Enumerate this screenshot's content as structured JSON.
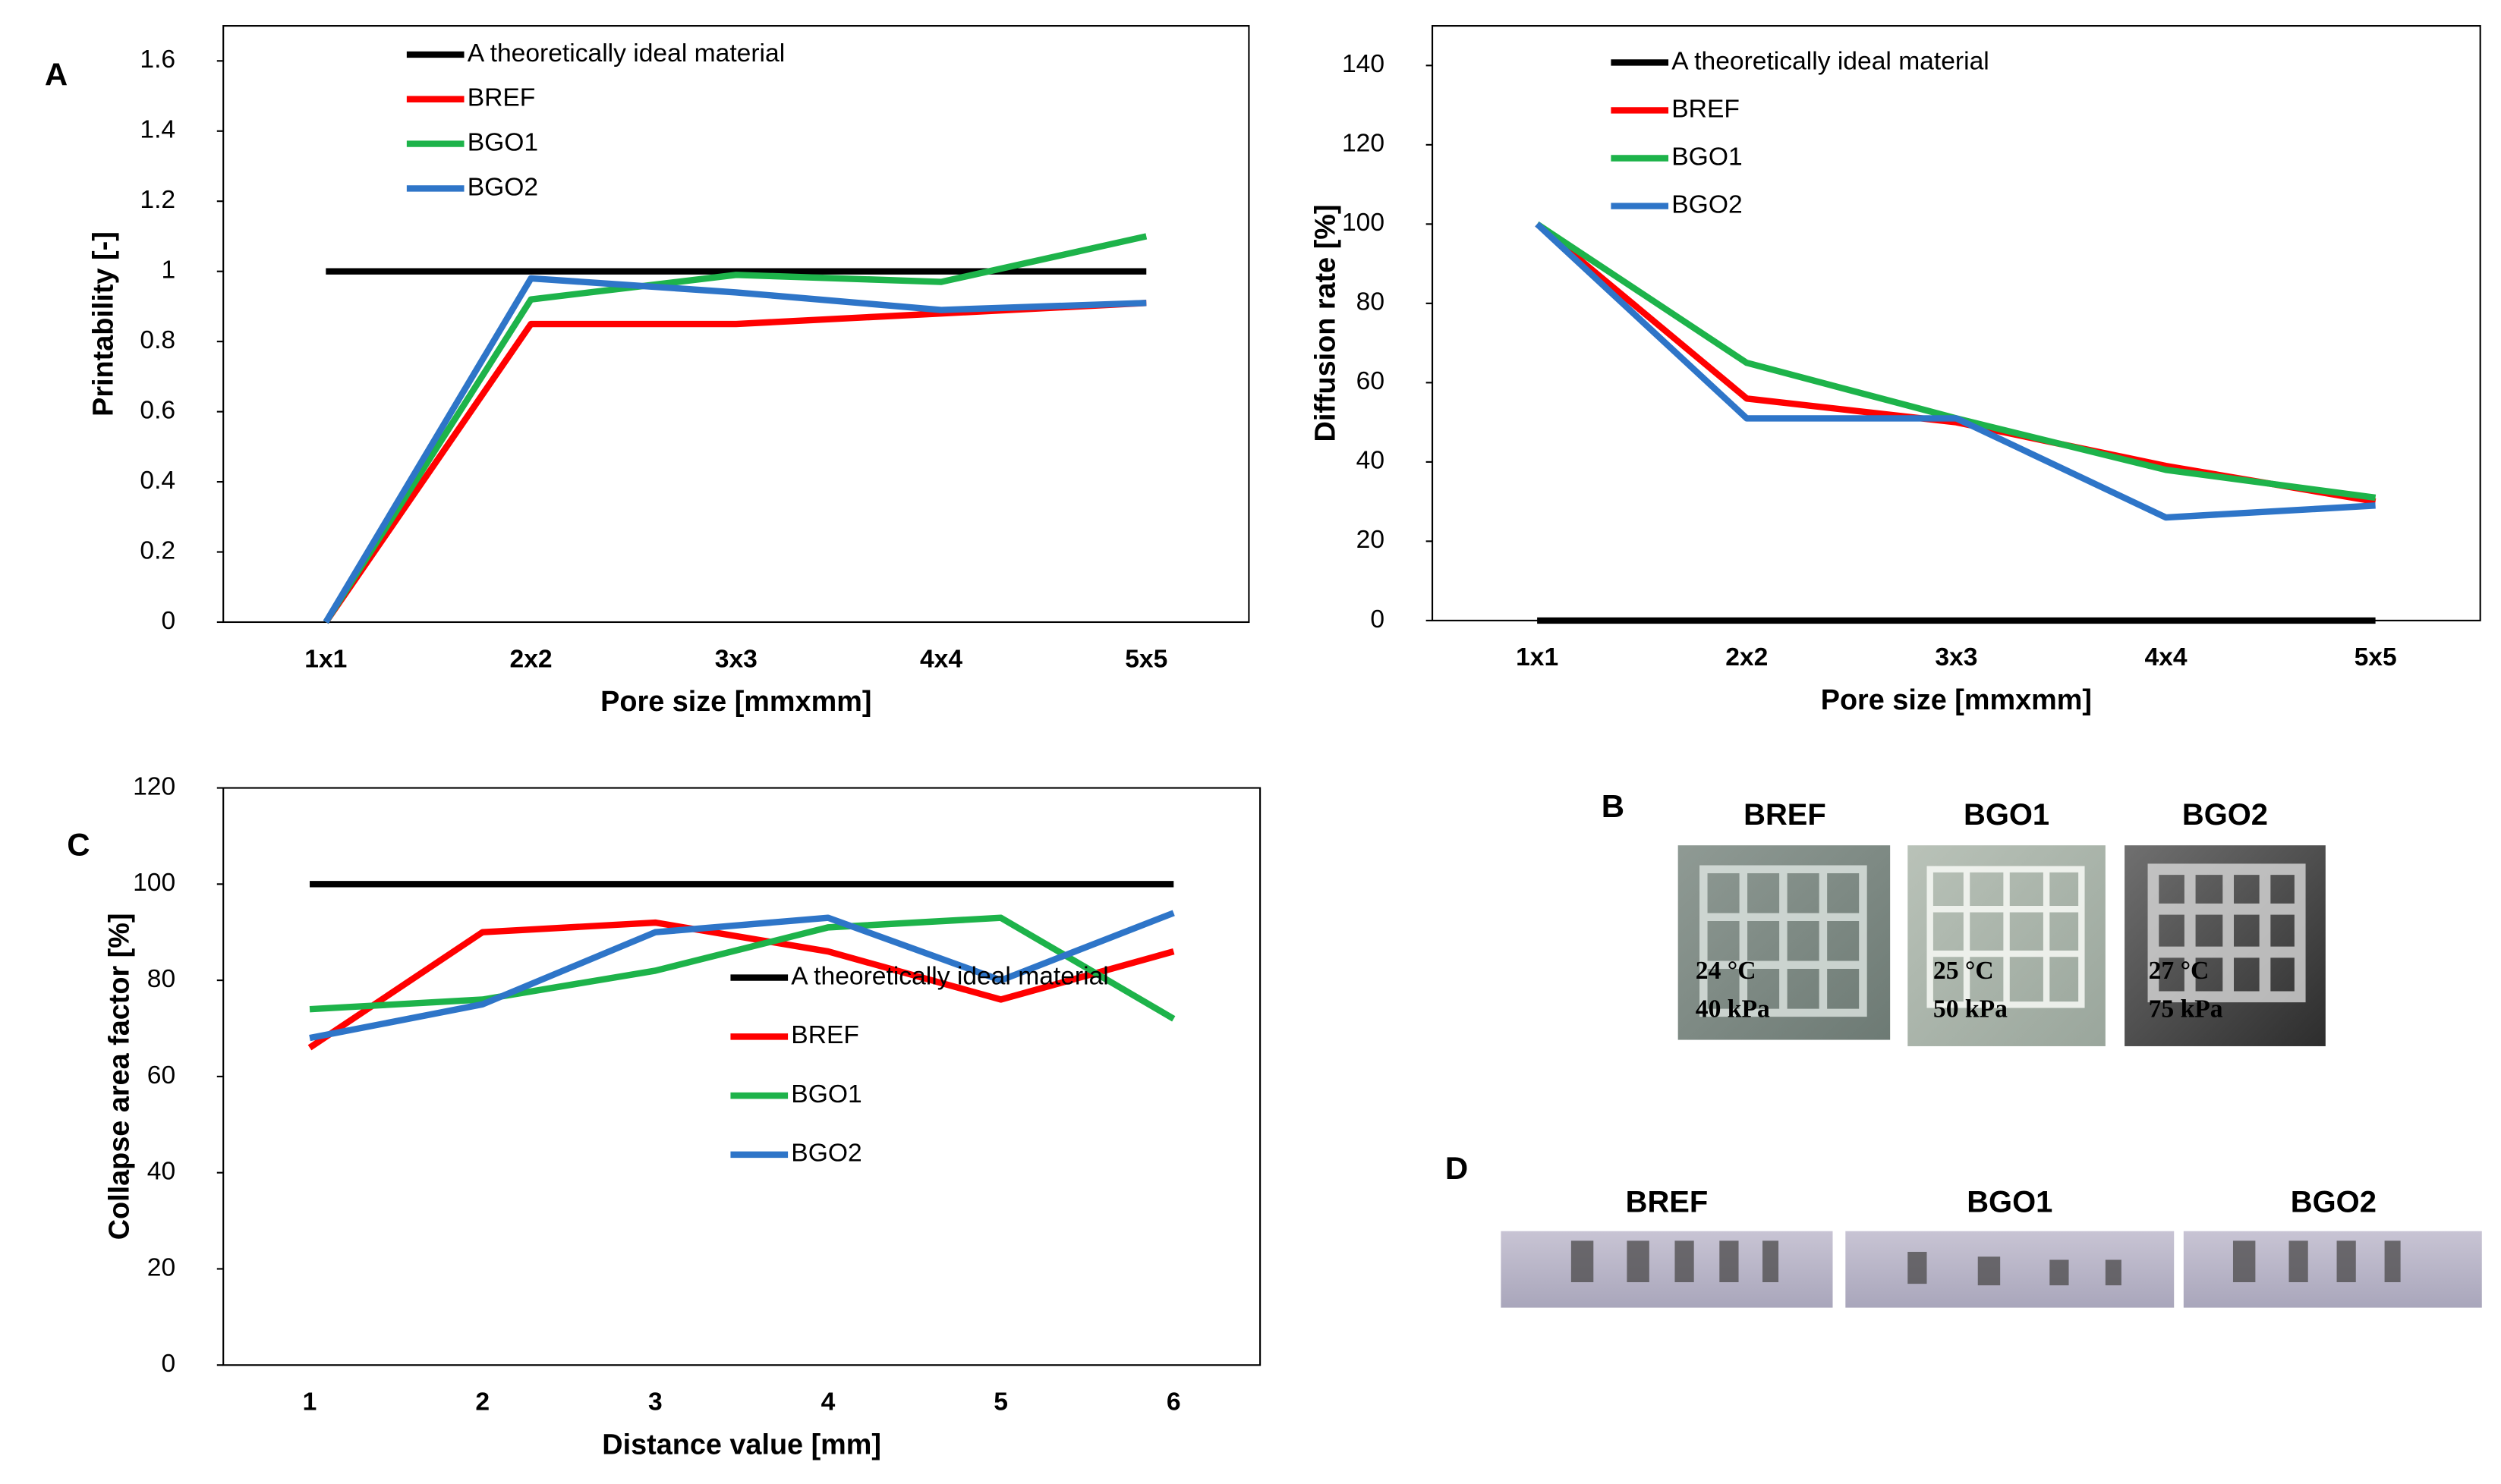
{
  "chart_data": [
    {
      "type": "line",
      "panel": "A",
      "x_label": "Pore size [mmxmm]",
      "y_label": "Printability [-]",
      "categories": [
        "1x1",
        "2x2",
        "3x3",
        "4x4",
        "5x5"
      ],
      "ylim": [
        0,
        1.7
      ],
      "yticks": [
        0,
        0.2,
        0.4,
        0.6,
        0.8,
        1,
        1.2,
        1.4,
        1.6
      ],
      "legend": "upper left",
      "series": [
        {
          "name": "A theoretically ideal material",
          "color": "#000000",
          "values": [
            1,
            1,
            1,
            1,
            1
          ]
        },
        {
          "name": "BREF",
          "color": "#ff0000",
          "values": [
            0,
            0.85,
            0.85,
            0.88,
            0.91
          ]
        },
        {
          "name": "BGO1",
          "color": "#1db34a",
          "values": [
            0,
            0.92,
            0.99,
            0.97,
            1.1
          ]
        },
        {
          "name": "BGO2",
          "color": "#2e75c8",
          "values": [
            0,
            0.98,
            0.94,
            0.89,
            0.91
          ]
        }
      ]
    },
    {
      "type": "line",
      "x_label": "Pore size [mmxmm]",
      "y_label": "Diffusion rate [%]",
      "categories": [
        "1x1",
        "2x2",
        "3x3",
        "4x4",
        "5x5"
      ],
      "ylim": [
        0,
        150
      ],
      "yticks": [
        0,
        20,
        40,
        60,
        80,
        100,
        120,
        140
      ],
      "legend": "upper left",
      "series": [
        {
          "name": "A theoretically ideal material",
          "color": "#000000",
          "values": [
            0,
            0,
            0,
            0,
            0
          ]
        },
        {
          "name": "BREF",
          "color": "#ff0000",
          "values": [
            100,
            56,
            50,
            39,
            30
          ]
        },
        {
          "name": "BGO1",
          "color": "#1db34a",
          "values": [
            100,
            65,
            51,
            38,
            31
          ]
        },
        {
          "name": "BGO2",
          "color": "#2e75c8",
          "values": [
            100,
            51,
            51,
            26,
            29
          ]
        }
      ]
    },
    {
      "type": "line",
      "panel": "C",
      "x_label": "Distance value [mm]",
      "y_label": "Collapse area factor [%]",
      "categories": [
        "1",
        "2",
        "3",
        "4",
        "5",
        "6"
      ],
      "ylim": [
        0,
        120
      ],
      "yticks": [
        0,
        20,
        40,
        60,
        80,
        100,
        120
      ],
      "legend": "lower right",
      "series": [
        {
          "name": "A theoretically ideal material",
          "color": "#000000",
          "values": [
            100,
            100,
            100,
            100,
            100,
            100
          ]
        },
        {
          "name": "BREF",
          "color": "#ff0000",
          "values": [
            66,
            90,
            92,
            86,
            76,
            86
          ]
        },
        {
          "name": "BGO1",
          "color": "#1db34a",
          "values": [
            74,
            76,
            82,
            91,
            93,
            72
          ]
        },
        {
          "name": "BGO2",
          "color": "#2e75c8",
          "values": [
            68,
            75,
            90,
            93,
            80,
            94
          ]
        }
      ]
    }
  ],
  "photos_b": {
    "panel": "B",
    "items": [
      {
        "name": "BREF",
        "temperature": "24 °C",
        "pressure": "40 kPa"
      },
      {
        "name": "BGO1",
        "temperature": "25 °C",
        "pressure": "50 kPa"
      },
      {
        "name": "BGO2",
        "temperature": "27 °C",
        "pressure": "75 kPa"
      }
    ]
  },
  "photos_d": {
    "panel": "D",
    "items": [
      "BREF",
      "BGO1",
      "BGO2"
    ]
  }
}
